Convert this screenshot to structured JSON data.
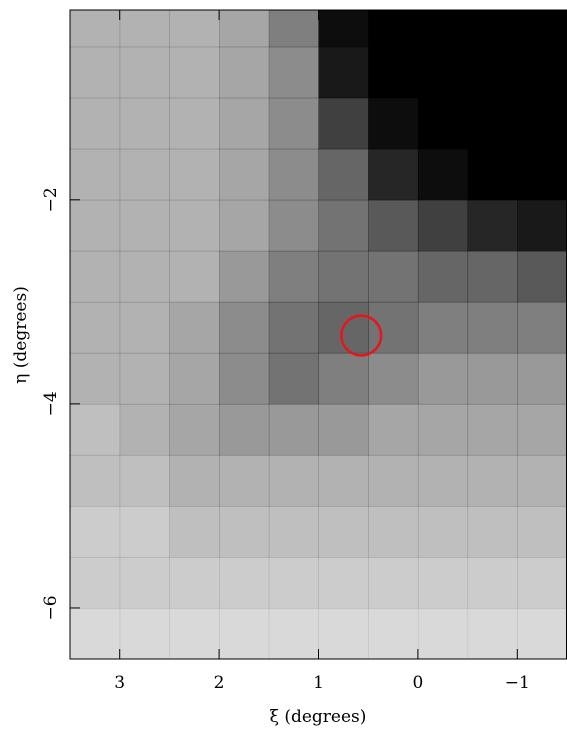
{
  "chart_data": {
    "type": "density",
    "xlabel": "ξ (degrees)",
    "ylabel": "η (degrees)",
    "xlim": [
      3.5,
      -1.5
    ],
    "ylim": [
      -6.5,
      -0.14
    ],
    "xticks": [
      3,
      2,
      1,
      0,
      {
        "value": -1,
        "label": "−1"
      }
    ],
    "yticks": [
      {
        "value": -2,
        "label": "−2"
      },
      {
        "value": -4,
        "label": "−4"
      },
      {
        "value": -6,
        "label": "−6"
      }
    ],
    "color": "#000000",
    "xbins": [
      3.5,
      3,
      2.5,
      2,
      1.5,
      1,
      0.5,
      0,
      -0.5,
      -1,
      -1.5
    ],
    "ybins": [
      0,
      -0.5,
      -1,
      -1.5,
      -2,
      -2.5,
      -3,
      -3.5,
      -4,
      -4.5,
      -5,
      -5.5,
      -6,
      -6.5
    ],
    "density": [
      [
        0.3,
        0.3,
        0.3,
        0.35,
        0.5,
        0.95,
        1,
        1,
        1,
        1
      ],
      [
        0.3,
        0.3,
        0.3,
        0.35,
        0.45,
        0.9,
        1,
        1,
        1,
        1
      ],
      [
        0.3,
        0.3,
        0.3,
        0.35,
        0.45,
        0.75,
        0.95,
        1,
        1,
        1
      ],
      [
        0.3,
        0.3,
        0.3,
        0.35,
        0.45,
        0.6,
        0.85,
        0.95,
        1,
        1
      ],
      [
        0.3,
        0.3,
        0.3,
        0.35,
        0.45,
        0.55,
        0.65,
        0.75,
        0.85,
        0.9
      ],
      [
        0.3,
        0.3,
        0.3,
        0.4,
        0.5,
        0.55,
        0.55,
        0.6,
        0.6,
        0.65
      ],
      [
        0.3,
        0.3,
        0.35,
        0.45,
        0.55,
        0.6,
        0.55,
        0.5,
        0.5,
        0.5
      ],
      [
        0.3,
        0.3,
        0.35,
        0.45,
        0.55,
        0.5,
        0.45,
        0.4,
        0.4,
        0.4
      ],
      [
        0.25,
        0.3,
        0.35,
        0.4,
        0.4,
        0.4,
        0.35,
        0.35,
        0.35,
        0.35
      ],
      [
        0.25,
        0.25,
        0.3,
        0.3,
        0.3,
        0.3,
        0.3,
        0.3,
        0.3,
        0.3
      ],
      [
        0.2,
        0.2,
        0.25,
        0.25,
        0.25,
        0.25,
        0.25,
        0.25,
        0.25,
        0.25
      ],
      [
        0.2,
        0.2,
        0.2,
        0.2,
        0.2,
        0.2,
        0.2,
        0.2,
        0.2,
        0.2
      ],
      [
        0.15,
        0.15,
        0.15,
        0.15,
        0.15,
        0.15,
        0.15,
        0.15,
        0.15,
        0.15
      ]
    ],
    "marker_circle": {
      "x": 0.57,
      "y": -3.33,
      "radius": 0.2,
      "color": "#e8141c"
    }
  }
}
